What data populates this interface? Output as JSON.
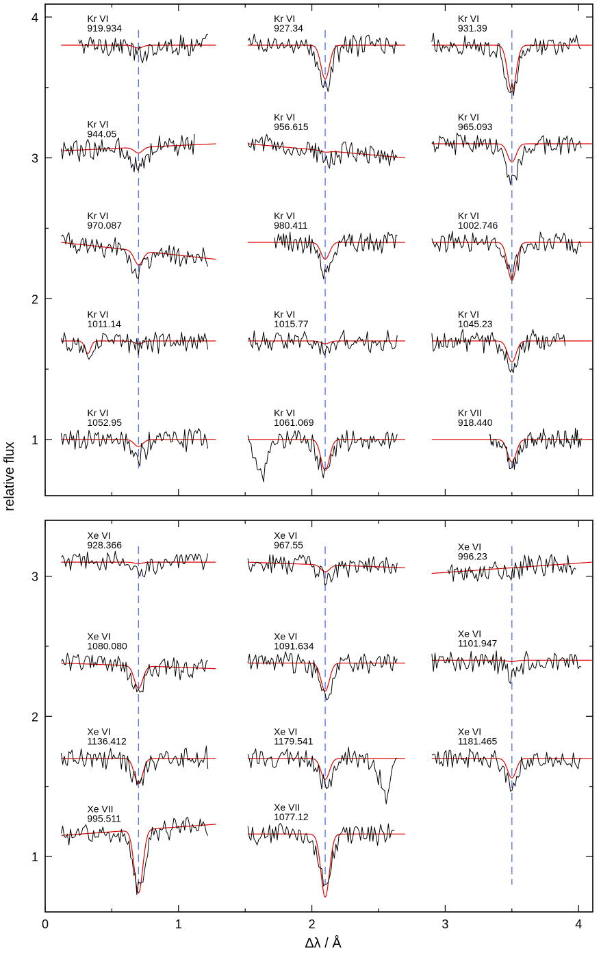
{
  "chart_data": [
    {
      "type": "line",
      "xlabel": "Δλ / Å",
      "ylabel": "relative flux",
      "xlim": [
        0,
        4.15
      ],
      "ylim": [
        0.6,
        4.1
      ],
      "x_ticks": [
        "0",
        "1",
        "2",
        "3",
        "4"
      ],
      "y_ticks": [
        "1",
        "2",
        "3",
        "4"
      ],
      "grid": false,
      "legend": "none",
      "columns": [
        {
          "x_start": 0.12,
          "x_end": 1.28,
          "line_x": 0.7
        },
        {
          "x_start": 1.52,
          "x_end": 2.7,
          "line_x": 2.1
        },
        {
          "x_start": 2.9,
          "x_end": 4.1,
          "line_x": 3.5
        }
      ],
      "series_colors": {
        "observation": "#000000",
        "model": "#e00000",
        "line_center": "#5a78e6"
      },
      "panels": [
        {
          "ion": "Kr VI",
          "wavelength": "919.934",
          "col": 0,
          "baseline": 3.8,
          "model_depth": 0.02,
          "obs_depth": 0.08,
          "obs_start": 0.25
        },
        {
          "ion": "Kr VI",
          "wavelength": "927.34",
          "col": 1,
          "baseline": 3.8,
          "model_depth": 0.24,
          "obs_depth": 0.3
        },
        {
          "ion": "Kr VI",
          "wavelength": "931.39",
          "col": 2,
          "baseline": 3.8,
          "model_depth": 0.33,
          "obs_depth": 0.32
        },
        {
          "ion": "Kr VI",
          "wavelength": "944.05",
          "col": 0,
          "baseline": 3.05,
          "slope": 0.05,
          "model_depth": 0.04,
          "obs_depth": 0.14,
          "obs_end": 1.12
        },
        {
          "ion": "Kr VI",
          "wavelength": "956.615",
          "col": 1,
          "baseline": 3.1,
          "slope": -0.1,
          "model_depth": 0.01,
          "obs_depth": 0.06
        },
        {
          "ion": "Kr VI",
          "wavelength": "965.093",
          "col": 2,
          "baseline": 3.1,
          "model_depth": 0.13,
          "obs_depth": 0.28
        },
        {
          "ion": "Kr VI",
          "wavelength": "970.087",
          "col": 0,
          "baseline": 2.4,
          "slope": -0.12,
          "model_depth": 0.1,
          "obs_depth": 0.14
        },
        {
          "ion": "Kr VI",
          "wavelength": "980.411",
          "col": 1,
          "baseline": 2.4,
          "model_depth": 0.12,
          "obs_depth": 0.2,
          "obs_start": 1.72
        },
        {
          "ion": "Kr VI",
          "wavelength": "1002.746",
          "col": 2,
          "baseline": 2.4,
          "model_depth": 0.27,
          "obs_depth": 0.2
        },
        {
          "ion": "Kr VI",
          "wavelength": "1011.14",
          "col": 0,
          "baseline": 1.7,
          "model_depth": 0.02,
          "obs_depth": 0.05,
          "extra_dip": [
            0.32,
            0.09
          ]
        },
        {
          "ion": "Kr VI",
          "wavelength": "1015.77",
          "col": 1,
          "baseline": 1.7,
          "model_depth": 0.02,
          "obs_depth": 0.08
        },
        {
          "ion": "Kr VI",
          "wavelength": "1045.23",
          "col": 2,
          "baseline": 1.7,
          "model_depth": 0.15,
          "obs_depth": 0.18,
          "obs_end": 3.9
        },
        {
          "ion": "Kr VI",
          "wavelength": "1052.95",
          "col": 0,
          "baseline": 1.0,
          "model_depth": 0.05,
          "obs_depth": 0.12
        },
        {
          "ion": "Kr VI",
          "wavelength": "1061.069",
          "col": 1,
          "baseline": 1.0,
          "model_depth": 0.22,
          "obs_depth": 0.26,
          "extra_dip": [
            1.63,
            0.24
          ]
        },
        {
          "ion": "Kr VII",
          "wavelength": "918.440",
          "col": 2,
          "baseline": 1.0,
          "model_depth": 0.16,
          "obs_depth": 0.18,
          "obs_start": 3.33
        }
      ]
    },
    {
      "type": "line",
      "xlabel": "Δλ / Å",
      "ylabel": "relative flux",
      "xlim": [
        0,
        4.15
      ],
      "ylim": [
        0.6,
        3.4
      ],
      "x_ticks": [
        "0",
        "1",
        "2",
        "3",
        "4"
      ],
      "y_ticks": [
        "1",
        "2",
        "3"
      ],
      "grid": false,
      "legend": "none",
      "panels": [
        {
          "ion": "Xe VI",
          "wavelength": "928.366",
          "col": 0,
          "baseline": 3.1,
          "model_depth": 0.01,
          "obs_depth": 0.08
        },
        {
          "ion": "Xe VI",
          "wavelength": "967.55",
          "col": 1,
          "baseline": 3.1,
          "slope": -0.04,
          "model_depth": 0.05,
          "obs_depth": 0.1
        },
        {
          "ion": "Xe VI",
          "wavelength": "996.23",
          "col": 2,
          "baseline": 3.02,
          "slope": 0.08,
          "model_depth": 0.0,
          "obs_depth": 0.02,
          "obs_start": 3.02,
          "obs_end": 3.98
        },
        {
          "ion": "Xe VI",
          "wavelength": "1080.080",
          "col": 0,
          "baseline": 2.38,
          "slope": -0.04,
          "model_depth": 0.16,
          "obs_depth": 0.18
        },
        {
          "ion": "Xe VI",
          "wavelength": "1091.634",
          "col": 1,
          "baseline": 2.38,
          "model_depth": 0.2,
          "obs_depth": 0.24
        },
        {
          "ion": "Xe VI",
          "wavelength": "1101.947",
          "col": 2,
          "baseline": 2.4,
          "model_depth": 0.01,
          "obs_depth": 0.1
        },
        {
          "ion": "Xe VI",
          "wavelength": "1136.412",
          "col": 0,
          "baseline": 1.7,
          "model_depth": 0.18,
          "obs_depth": 0.18
        },
        {
          "ion": "Xe VI",
          "wavelength": "1179.541",
          "col": 1,
          "baseline": 1.7,
          "model_depth": 0.15,
          "obs_depth": 0.2,
          "extra_dip": [
            2.55,
            0.24
          ]
        },
        {
          "ion": "Xe VI",
          "wavelength": "1181.465",
          "col": 2,
          "baseline": 1.7,
          "model_depth": 0.14,
          "obs_depth": 0.18
        },
        {
          "ion": "Xe VII",
          "wavelength": "995.511",
          "col": 0,
          "baseline": 1.15,
          "slope": 0.08,
          "model_depth": 0.45,
          "obs_depth": 0.4
        },
        {
          "ion": "Xe VII",
          "wavelength": "1077.12",
          "col": 1,
          "baseline": 1.16,
          "model_depth": 0.45,
          "obs_depth": 0.35,
          "obs_end": 2.62
        }
      ]
    }
  ]
}
